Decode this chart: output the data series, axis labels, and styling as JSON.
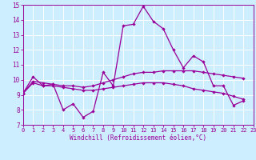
{
  "xlabel": "Windchill (Refroidissement éolien,°C)",
  "background_color": "#cceeff",
  "line_color": "#990099",
  "ylim": [
    7,
    15
  ],
  "xlim": [
    0,
    23
  ],
  "yticks": [
    7,
    8,
    9,
    10,
    11,
    12,
    13,
    14,
    15
  ],
  "xticks": [
    0,
    1,
    2,
    3,
    4,
    5,
    6,
    7,
    8,
    9,
    10,
    11,
    12,
    13,
    14,
    15,
    16,
    17,
    18,
    19,
    20,
    21,
    22,
    23
  ],
  "series1_y": [
    9.1,
    10.2,
    9.6,
    9.7,
    8.0,
    8.4,
    7.5,
    7.9,
    10.5,
    9.6,
    13.6,
    13.7,
    14.9,
    13.9,
    13.4,
    12.0,
    10.8,
    11.6,
    11.2,
    9.6,
    9.6,
    8.3,
    8.6,
    null
  ],
  "series2_y": [
    9.1,
    9.9,
    9.8,
    9.7,
    9.6,
    9.6,
    9.5,
    9.6,
    9.8,
    10.0,
    10.2,
    10.4,
    10.5,
    10.5,
    10.6,
    10.6,
    10.6,
    10.6,
    10.5,
    10.4,
    10.3,
    10.2,
    10.1,
    null
  ],
  "series3_y": [
    9.1,
    9.8,
    9.6,
    9.6,
    9.5,
    9.4,
    9.3,
    9.3,
    9.4,
    9.5,
    9.6,
    9.7,
    9.8,
    9.8,
    9.8,
    9.7,
    9.6,
    9.4,
    9.3,
    9.2,
    9.1,
    8.9,
    8.7,
    null
  ]
}
